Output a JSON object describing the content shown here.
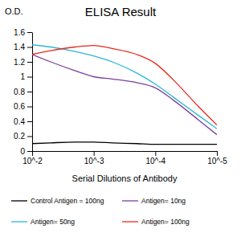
{
  "chart_data": {
    "type": "line",
    "title": "ELISA Result",
    "x_label": "Serial Dilutions of Antibody",
    "y_label": "O.D.",
    "log": "x",
    "x": [
      0.01,
      0.005,
      0.002,
      0.001,
      0.0005,
      0.0002,
      0.0001,
      5e-05,
      2e-05,
      1e-05
    ],
    "xlim": [
      0.01,
      1e-05
    ],
    "xticks": [
      {
        "value": 0.01,
        "label": "10^-2"
      },
      {
        "value": 0.001,
        "label": "10^-3"
      },
      {
        "value": 0.0001,
        "label": "10^-4"
      },
      {
        "value": 1e-05,
        "label": "10^-5"
      }
    ],
    "ylim": [
      0,
      1.6
    ],
    "yticks": [
      0,
      0.2,
      0.4,
      0.6,
      0.8,
      1,
      1.2,
      1.4,
      1.6
    ],
    "grid": false,
    "legend": "bottom",
    "series": [
      {
        "name": "Control Antigen = 100ng",
        "color": "#000000",
        "values": [
          0.1,
          0.11,
          0.12,
          0.12,
          0.11,
          0.1,
          0.09,
          0.09,
          0.09,
          0.09
        ]
      },
      {
        "name": "Antigen= 10ng",
        "color": "#7b3fa0",
        "values": [
          1.3,
          1.2,
          1.08,
          1.0,
          0.97,
          0.92,
          0.85,
          0.68,
          0.42,
          0.22
        ]
      },
      {
        "name": "Antigen= 50ng",
        "color": "#2ab7d6",
        "values": [
          1.43,
          1.4,
          1.34,
          1.28,
          1.2,
          1.05,
          0.9,
          0.72,
          0.48,
          0.3
        ]
      },
      {
        "name": "Antigen= 100ng",
        "color": "#e8291c",
        "values": [
          1.3,
          1.35,
          1.4,
          1.42,
          1.38,
          1.3,
          1.18,
          0.95,
          0.6,
          0.35
        ]
      }
    ]
  }
}
